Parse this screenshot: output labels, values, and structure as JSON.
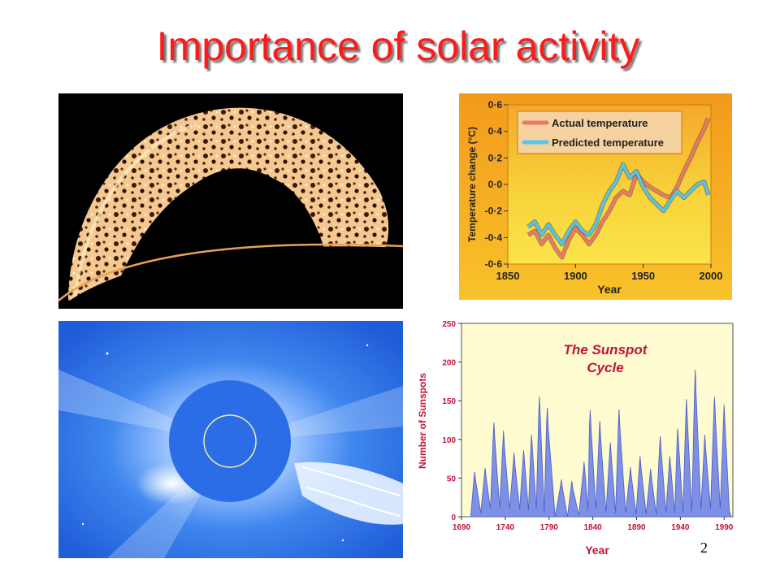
{
  "slide": {
    "title": "Importance of solar activity",
    "page_number": "2"
  },
  "colors": {
    "title": "#ff1a1a",
    "actual": "#f0766a",
    "predicted": "#54c6ec",
    "sunspot_fill": "#7e8fe6",
    "sunspot_bg": "#fdfbcf",
    "sunspot_axis_text": "#c0153a"
  },
  "chart_data": [
    {
      "type": "line",
      "xlabel": "Year",
      "ylabel": "Temperature change (°C)",
      "xlim": [
        1850,
        2000
      ],
      "ylim": [
        -0.6,
        0.6
      ],
      "x_ticks": [
        "1850",
        "1900",
        "1950",
        "2000"
      ],
      "y_ticks": [
        "0·6",
        "0·4",
        "0·2",
        "0·0",
        "-0·2",
        "-0·4",
        "-0·6"
      ],
      "legend_position": "top",
      "series": [
        {
          "name": "Actual temperature",
          "x": [
            1865,
            1870,
            1875,
            1880,
            1885,
            1890,
            1895,
            1900,
            1905,
            1910,
            1915,
            1920,
            1925,
            1930,
            1935,
            1940,
            1945,
            1950,
            1955,
            1960,
            1965,
            1970,
            1975,
            1980,
            1985,
            1990,
            1995,
            1998
          ],
          "y": [
            -0.38,
            -0.35,
            -0.45,
            -0.38,
            -0.48,
            -0.55,
            -0.42,
            -0.33,
            -0.38,
            -0.45,
            -0.38,
            -0.28,
            -0.2,
            -0.1,
            -0.05,
            -0.08,
            0.08,
            0.02,
            -0.02,
            -0.05,
            -0.08,
            -0.1,
            -0.02,
            0.1,
            0.2,
            0.32,
            0.42,
            0.5
          ]
        },
        {
          "name": "Predicted temperature",
          "x": [
            1865,
            1870,
            1875,
            1880,
            1885,
            1890,
            1895,
            1900,
            1905,
            1910,
            1915,
            1920,
            1925,
            1930,
            1935,
            1940,
            1945,
            1950,
            1955,
            1960,
            1965,
            1970,
            1975,
            1980,
            1985,
            1990,
            1995,
            1998
          ],
          "y": [
            -0.32,
            -0.28,
            -0.38,
            -0.3,
            -0.38,
            -0.45,
            -0.35,
            -0.28,
            -0.35,
            -0.38,
            -0.3,
            -0.15,
            -0.05,
            0.02,
            0.15,
            0.05,
            0.1,
            -0.02,
            -0.1,
            -0.15,
            -0.2,
            -0.12,
            -0.05,
            -0.1,
            -0.05,
            0.0,
            0.02,
            -0.08
          ]
        }
      ]
    },
    {
      "type": "area",
      "title": "The Sunspot Cycle",
      "xlabel": "Year",
      "ylabel": "Number of Sunspots",
      "xlim": [
        1690,
        2000
      ],
      "ylim": [
        0,
        250
      ],
      "x_ticks": [
        "1690",
        "1740",
        "1790",
        "1840",
        "1890",
        "1940",
        "1990"
      ],
      "y_ticks": [
        "0",
        "50",
        "100",
        "150",
        "200",
        "250"
      ],
      "grid": false,
      "cycles": [
        {
          "peak_year": 1705,
          "peak": 58,
          "min": 0
        },
        {
          "peak_year": 1717,
          "peak": 63,
          "min": 5
        },
        {
          "peak_year": 1727,
          "peak": 122,
          "min": 10
        },
        {
          "peak_year": 1738,
          "peak": 111,
          "min": 12
        },
        {
          "peak_year": 1750,
          "peak": 83,
          "min": 10
        },
        {
          "peak_year": 1761,
          "peak": 86,
          "min": 10
        },
        {
          "peak_year": 1770,
          "peak": 106,
          "min": 8
        },
        {
          "peak_year": 1779,
          "peak": 155,
          "min": 10
        },
        {
          "peak_year": 1788,
          "peak": 141,
          "min": 5
        },
        {
          "peak_year": 1804,
          "peak": 48,
          "min": 0
        },
        {
          "peak_year": 1816,
          "peak": 46,
          "min": 0
        },
        {
          "peak_year": 1830,
          "peak": 71,
          "min": 2
        },
        {
          "peak_year": 1837,
          "peak": 138,
          "min": 8
        },
        {
          "peak_year": 1848,
          "peak": 124,
          "min": 10
        },
        {
          "peak_year": 1860,
          "peak": 96,
          "min": 5
        },
        {
          "peak_year": 1870,
          "peak": 139,
          "min": 5
        },
        {
          "peak_year": 1883,
          "peak": 64,
          "min": 5
        },
        {
          "peak_year": 1894,
          "peak": 78,
          "min": 3
        },
        {
          "peak_year": 1906,
          "peak": 62,
          "min": 3
        },
        {
          "peak_year": 1917,
          "peak": 104,
          "min": 3
        },
        {
          "peak_year": 1928,
          "peak": 78,
          "min": 5
        },
        {
          "peak_year": 1937,
          "peak": 114,
          "min": 5
        },
        {
          "peak_year": 1947,
          "peak": 152,
          "min": 5
        },
        {
          "peak_year": 1957,
          "peak": 190,
          "min": 5
        },
        {
          "peak_year": 1968,
          "peak": 106,
          "min": 10
        },
        {
          "peak_year": 1979,
          "peak": 155,
          "min": 10
        },
        {
          "peak_year": 1990,
          "peak": 145,
          "min": 10
        }
      ]
    }
  ]
}
